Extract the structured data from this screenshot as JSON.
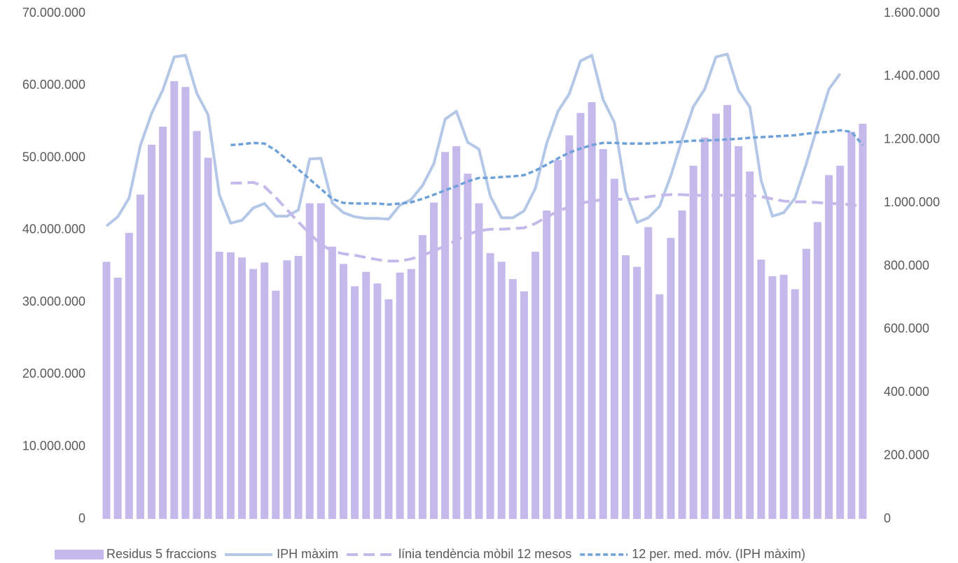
{
  "chart_data": {
    "type": "combo",
    "ylim": [
      0,
      70000000
    ],
    "yticks": [
      0,
      {
        "value": 10000000,
        "label": "10.000.000"
      },
      {
        "value": 20000000,
        "label": "20.000.000"
      },
      {
        "value": 30000000,
        "label": "30.000.000"
      },
      {
        "value": 40000000,
        "label": "40.000.000"
      },
      {
        "value": 50000000,
        "label": "50.000.000"
      },
      {
        "value": 60000000,
        "label": "60.000.000"
      },
      {
        "value": 70000000,
        "label": "70.000.000"
      }
    ],
    "y2lim": [
      0,
      1600000
    ],
    "y2ticks": [
      0,
      {
        "value": 200000,
        "label": "200.000"
      },
      {
        "value": 400000,
        "label": "400.000"
      },
      {
        "value": 600000,
        "label": "600.000"
      },
      {
        "value": 800000,
        "label": "800.000"
      },
      {
        "value": 1000000,
        "label": "1.000.000"
      },
      {
        "value": 1200000,
        "label": "1.200.000"
      },
      {
        "value": 1400000,
        "label": "1.400.000"
      },
      {
        "value": 1600000,
        "label": "1.600.000"
      }
    ],
    "legend": "bottom",
    "series": [
      {
        "name": "Residus 5 fraccions",
        "type": "bar",
        "color": "#c4b9ea",
        "values": [
          35600000,
          33400000,
          39600000,
          44900000,
          51800000,
          54300000,
          60600000,
          59800000,
          53700000,
          50000000,
          37000000,
          36900000,
          36200000,
          34600000,
          35500000,
          31600000,
          35800000,
          36400000,
          43700000,
          43700000,
          37700000,
          35300000,
          32200000,
          34200000,
          32600000,
          30400000,
          34100000,
          34600000,
          39300000,
          43800000,
          50800000,
          51600000,
          47800000,
          43700000,
          36800000,
          35600000,
          33200000,
          31500000,
          37000000,
          42700000,
          49700000,
          53100000,
          56200000,
          57700000,
          51200000,
          47100000,
          36500000,
          34900000,
          40400000,
          31100000,
          38900000,
          42700000,
          48900000,
          52800000,
          56100000,
          57300000,
          51600000,
          48100000,
          35900000,
          33600000,
          33800000,
          31800000,
          37400000,
          41100000,
          47600000,
          48900000,
          53600000,
          54700000
        ]
      },
      {
        "name": "IPH màxim",
        "type": "line",
        "axis": "y2",
        "color": "#b4c7e7",
        "line_style": "solid",
        "values": [
          927000,
          956000,
          1015000,
          1181000,
          1283000,
          1358000,
          1462000,
          1467000,
          1347000,
          1279000,
          1026000,
          936000,
          945000,
          984000,
          998000,
          958000,
          958000,
          978000,
          1139000,
          1141000,
          1000000,
          969000,
          956000,
          951000,
          951000,
          949000,
          993000,
          1011000,
          1055000,
          1124000,
          1265000,
          1290000,
          1192000,
          1170000,
          1022000,
          953000,
          953000,
          975000,
          1046000,
          1188000,
          1290000,
          1345000,
          1449000,
          1467000,
          1327000,
          1254000,
          1037000,
          938000,
          953000,
          989000,
          1086000,
          1201000,
          1305000,
          1360000,
          1462000,
          1471000,
          1356000,
          1303000,
          1071000,
          958000,
          969000,
          1015000,
          1124000,
          1243000,
          1360000,
          1409000,
          null,
          null
        ]
      },
      {
        "name": "línia tendència mòbil 12 mesos",
        "type": "line",
        "color": "#c4b9ea",
        "line_style": "dashed",
        "values": [
          null,
          null,
          null,
          null,
          null,
          null,
          null,
          null,
          null,
          null,
          null,
          46500000,
          46500000,
          46600000,
          46000000,
          44500000,
          42800000,
          41100000,
          39500000,
          38000000,
          37100000,
          36700000,
          36500000,
          36200000,
          35900000,
          35700000,
          35700000,
          36000000,
          36500000,
          37100000,
          37800000,
          38600000,
          39400000,
          39900000,
          40100000,
          40100000,
          40200000,
          40300000,
          40900000,
          41800000,
          42600000,
          43200000,
          43700000,
          44000000,
          44200000,
          44300000,
          44200000,
          44300000,
          44600000,
          44800000,
          44900000,
          44900000,
          44800000,
          44800000,
          44800000,
          44800000,
          44800000,
          44800000,
          44600000,
          44300000,
          44000000,
          43900000,
          43900000,
          43800000,
          43700000,
          43600000,
          43500000,
          43300000
        ]
      },
      {
        "name": "12 per. med. móv. (IPH màxim)",
        "type": "line",
        "axis": "y2",
        "color": "#6fa1d9",
        "line_style": "dotted",
        "values": [
          null,
          null,
          null,
          null,
          null,
          null,
          null,
          null,
          null,
          null,
          null,
          1183000,
          1186000,
          1190000,
          1188000,
          1166000,
          1137000,
          1106000,
          1075000,
          1044000,
          1013000,
          1000000,
          998000,
          998000,
          998000,
          995000,
          998000,
          1002000,
          1013000,
          1026000,
          1040000,
          1053000,
          1068000,
          1079000,
          1079000,
          1082000,
          1084000,
          1088000,
          1102000,
          1121000,
          1141000,
          1159000,
          1172000,
          1183000,
          1190000,
          1190000,
          1188000,
          1188000,
          1188000,
          1190000,
          1192000,
          1194000,
          1197000,
          1197000,
          1199000,
          1201000,
          1203000,
          1206000,
          1208000,
          1210000,
          1212000,
          1214000,
          1219000,
          1223000,
          1225000,
          1230000,
          1225000,
          1183000
        ]
      }
    ]
  }
}
